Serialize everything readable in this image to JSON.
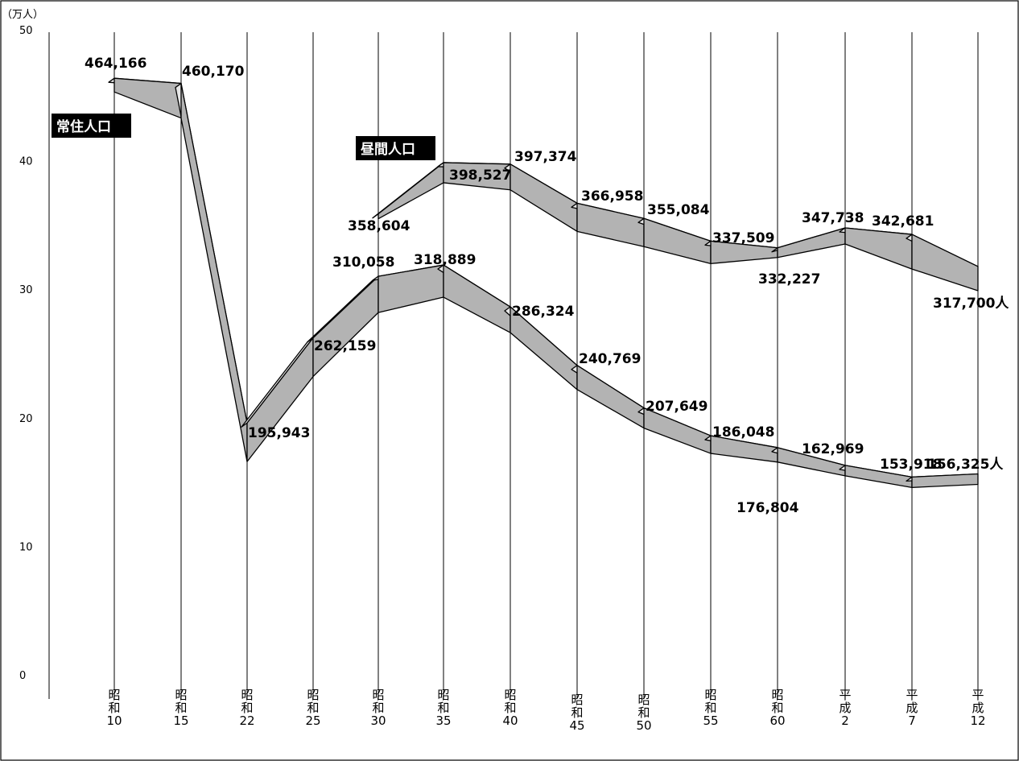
{
  "chart_data": {
    "type": "line",
    "y_unit_label": "（万人）",
    "ylim": [
      0,
      50
    ],
    "y_ticks": [
      "0",
      "10",
      "20",
      "30",
      "40",
      "50"
    ],
    "categories": [
      [
        "昭",
        "和",
        "10"
      ],
      [
        "昭",
        "和",
        "15"
      ],
      [
        "昭",
        "和",
        "22"
      ],
      [
        "昭",
        "和",
        "25"
      ],
      [
        "昭",
        "和",
        "30"
      ],
      [
        "昭",
        "和",
        "35"
      ],
      [
        "昭",
        "和",
        "40"
      ],
      [
        "昭",
        "和",
        "45"
      ],
      [
        "昭",
        "和",
        "50"
      ],
      [
        "昭",
        "和",
        "55"
      ],
      [
        "昭",
        "和",
        "60"
      ],
      [
        "平",
        "成",
        "2"
      ],
      [
        "平",
        "成",
        "7"
      ],
      [
        "平",
        "成",
        "12"
      ]
    ],
    "series": [
      {
        "name": "常住人口",
        "values": [
          464166,
          460170,
          195943,
          262159,
          310058,
          318889,
          286324,
          240769,
          207649,
          186048,
          176804,
          162969,
          153918,
          156325
        ],
        "labels": [
          "464,166",
          "460,170",
          "195,943",
          "262,159",
          "310,058",
          "318,889",
          "286,324",
          "240,769",
          "207,649",
          "186,048",
          "176,804",
          "162,969",
          "153,918",
          "156,325人"
        ]
      },
      {
        "name": "昼間人口",
        "values": [
          null,
          null,
          null,
          null,
          358604,
          398527,
          397374,
          366958,
          355084,
          337509,
          332227,
          347738,
          342681,
          317700
        ],
        "labels": [
          "",
          "",
          "",
          "",
          "358,604",
          "398,527",
          "397,374",
          "366,958",
          "355,084",
          "337,509",
          "332,227",
          "347,738",
          "342,681",
          "317,700人"
        ]
      }
    ],
    "grid": true
  }
}
